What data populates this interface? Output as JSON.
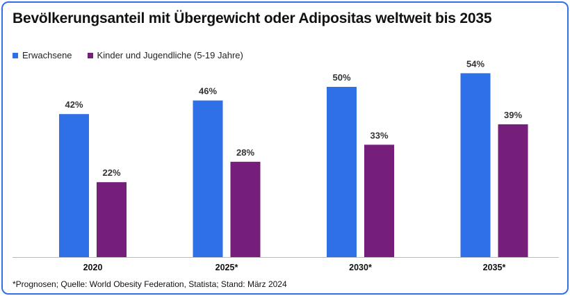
{
  "title": "Bevölkerungsanteil mit Übergewicht oder Adipositas weltweit bis 2035",
  "footnote": "*Prognosen; Quelle: World Obesity Federation, Statista; Stand: März 2024",
  "colors": {
    "frame": "#2f6fe8",
    "series1": "#2f6fe8",
    "series2": "#751e7a"
  },
  "chart_data": {
    "type": "bar",
    "title": "Bevölkerungsanteil mit Übergewicht oder Adipositas weltweit bis 2035",
    "categories": [
      "2020",
      "2025*",
      "2030*",
      "2035*"
    ],
    "series": [
      {
        "name": "Erwachsene",
        "values": [
          42,
          46,
          50,
          54
        ],
        "labels": [
          "42%",
          "46%",
          "50%",
          "54%"
        ],
        "color": "#2f6fe8"
      },
      {
        "name": "Kinder und Jugendliche (5-19 Jahre)",
        "values": [
          22,
          28,
          33,
          39
        ],
        "labels": [
          "22%",
          "28%",
          "33%",
          "39%"
        ],
        "color": "#751e7a"
      }
    ],
    "ylim": [
      0,
      60
    ],
    "grid": false,
    "legend": "top-left",
    "xlabel": "",
    "ylabel": ""
  }
}
